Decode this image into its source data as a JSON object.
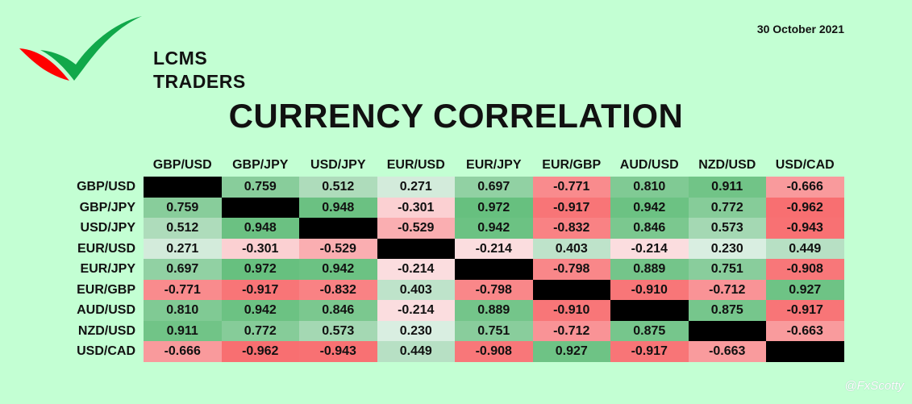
{
  "brand": {
    "logo_lines": [
      "LCMS",
      "TRADERS"
    ],
    "colors": {
      "red": "#ff0000",
      "green": "#11a84a"
    }
  },
  "date": "30 October 2021",
  "title": "CURRENCY CORRELATION",
  "watermark": "@FxScotty",
  "chart_data": {
    "type": "heatmap",
    "title": "CURRENCY CORRELATION",
    "columns": [
      "GBP/USD",
      "GBP/JPY",
      "USD/JPY",
      "EUR/USD",
      "EUR/JPY",
      "EUR/GBP",
      "AUD/USD",
      "NZD/USD",
      "USD/CAD"
    ],
    "rows": [
      "GBP/USD",
      "GBP/JPY",
      "USD/JPY",
      "EUR/USD",
      "EUR/JPY",
      "EUR/GBP",
      "AUD/USD",
      "NZD/USD",
      "USD/CAD"
    ],
    "values": [
      [
        null,
        0.759,
        0.512,
        0.271,
        0.697,
        -0.771,
        0.81,
        0.911,
        -0.666
      ],
      [
        0.759,
        null,
        0.948,
        -0.301,
        0.972,
        -0.917,
        0.942,
        0.772,
        -0.962
      ],
      [
        0.512,
        0.948,
        null,
        -0.529,
        0.942,
        -0.832,
        0.846,
        0.573,
        -0.943
      ],
      [
        0.271,
        -0.301,
        -0.529,
        null,
        -0.214,
        0.403,
        -0.214,
        0.23,
        0.449
      ],
      [
        0.697,
        0.972,
        0.942,
        -0.214,
        null,
        -0.798,
        0.889,
        0.751,
        -0.908
      ],
      [
        -0.771,
        -0.917,
        -0.832,
        0.403,
        -0.798,
        null,
        -0.91,
        -0.712,
        0.927
      ],
      [
        0.81,
        0.942,
        0.846,
        -0.214,
        0.889,
        -0.91,
        null,
        0.875,
        -0.917
      ],
      [
        0.911,
        0.772,
        0.573,
        0.23,
        0.751,
        -0.712,
        0.875,
        null,
        -0.663
      ],
      [
        -0.666,
        -0.962,
        -0.943,
        0.449,
        -0.908,
        0.927,
        -0.917,
        -0.663,
        null
      ]
    ],
    "value_range": [
      -1,
      1
    ],
    "color_scale": {
      "negative": "#f8696b",
      "zero": "#fcfcff",
      "positive": "#63be7b",
      "diagonal": "#000000"
    }
  }
}
